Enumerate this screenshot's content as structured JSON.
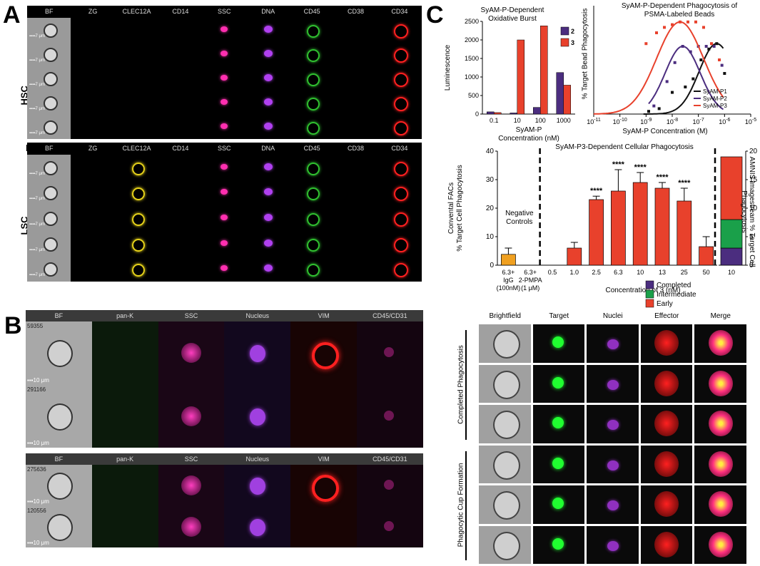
{
  "panels": {
    "A": "A",
    "B": "B",
    "C": "C",
    "subB": "B"
  },
  "panelA": {
    "columns": [
      "BF",
      "ZG",
      "CLEC12A",
      "CD14",
      "SSC",
      "DNA",
      "CD45",
      "CD38",
      "CD34"
    ],
    "row_labels": [
      "HSC",
      "LSC"
    ],
    "scale_label": "7 μm"
  },
  "panelB": {
    "columns": [
      "BF",
      "pan-K",
      "SSC",
      "Nucleus",
      "VIM",
      "CD45/CD31"
    ],
    "ids": [
      "59355",
      "291166",
      "275636",
      "120556"
    ],
    "scale_label": "10 μm"
  },
  "panelC_flow": {
    "columns": [
      "Brightfield",
      "Target",
      "Nuclei",
      "Effector",
      "Merge"
    ],
    "groups": [
      "Completed Phagocytosis",
      "Phagocytic Cup Formation"
    ]
  },
  "chart_data": [
    {
      "type": "bar",
      "title": "SyAM-P-Dependent Oxidative Burst",
      "xlabel": "SyAM-P Concentration (nM)",
      "ylabel": "Luminescence",
      "categories": [
        "0.1",
        "10",
        "100",
        "1000"
      ],
      "series": [
        {
          "name": "2",
          "color": "#4b2d7f",
          "values": [
            60,
            30,
            180,
            1120
          ]
        },
        {
          "name": "3",
          "color": "#e8412c",
          "values": [
            40,
            2000,
            2380,
            780
          ]
        }
      ],
      "ylim": [
        0,
        2500
      ],
      "yticks": [
        0,
        500,
        1000,
        1500,
        2000,
        2500
      ]
    },
    {
      "type": "line",
      "title": "SyAM-P-Dependent Phagocytosis of PSMA-Labeled Beads",
      "xlabel": "SyAM-P Concentration (M)",
      "ylabel": "% Target Bead Phagocytosis",
      "x_scale": "log",
      "xlim": [
        -11,
        -5
      ],
      "ylim": [
        0,
        80
      ],
      "xtick_exponents": [
        -11,
        -10,
        -9,
        -8,
        -7,
        -6,
        -5
      ],
      "yticks": [
        0,
        20,
        40,
        60,
        80
      ],
      "legend": [
        "SyAM-P1",
        "SyAM-P2",
        "SyAM-P3"
      ],
      "series": [
        {
          "name": "SyAM-P1",
          "color": "#111111",
          "points": [
            [
              -8.9,
              2
            ],
            [
              -8.5,
              4
            ],
            [
              -8.0,
              16
            ],
            [
              -7.5,
              20
            ],
            [
              -7.2,
              26
            ],
            [
              -6.9,
              40
            ],
            [
              -6.6,
              48
            ],
            [
              -6.3,
              52
            ],
            [
              -6.0,
              30
            ]
          ]
        },
        {
          "name": "SyAM-P2",
          "color": "#4b2d7f",
          "points": [
            [
              -8.7,
              6
            ],
            [
              -8.2,
              24
            ],
            [
              -7.9,
              38
            ],
            [
              -7.6,
              50
            ],
            [
              -7.3,
              46
            ],
            [
              -7.0,
              50
            ],
            [
              -6.7,
              50
            ],
            [
              -6.4,
              50
            ],
            [
              -6.1,
              36
            ]
          ]
        },
        {
          "name": "SyAM-P3",
          "color": "#e8412c",
          "points": [
            [
              -9.0,
              52
            ],
            [
              -8.6,
              60
            ],
            [
              -8.3,
              64
            ],
            [
              -8.0,
              66
            ],
            [
              -7.7,
              68
            ],
            [
              -7.4,
              68
            ],
            [
              -7.1,
              68
            ],
            [
              -6.8,
              64
            ],
            [
              -6.5,
              52
            ],
            [
              -6.2,
              40
            ]
          ]
        }
      ]
    },
    {
      "type": "bar",
      "title": "SyAM-P3-Dependent Cellular Phagocytosis",
      "ylabel_left": "Convental FACs % Target Cell Phagocytosis",
      "ylabel_right": "AMNIS Imagestream % Target Cell Phagocytosis",
      "xlabel": "Concentration of 3 (nM)",
      "annotation": "Negative Controls",
      "significance": "****",
      "ylim": [
        0,
        40
      ],
      "yticks": [
        0,
        10,
        20,
        30,
        40
      ],
      "yticks_right": [
        0,
        5,
        10,
        15,
        20
      ],
      "categories": [
        "6.3+ IgG (100nM)",
        "6.3+ 2-PMPA (1 μM)",
        "0.5",
        "1.0",
        "2.5",
        "6.3",
        "10",
        "13",
        "25",
        "50"
      ],
      "values": [
        3.8,
        0,
        0,
        6,
        23,
        26,
        29,
        27,
        22.5,
        6.5
      ],
      "errors": [
        2.2,
        0,
        0,
        2,
        1.2,
        7.5,
        3.5,
        2,
        4.5,
        3.5
      ],
      "stacked_bar": {
        "category": "10",
        "segments": [
          {
            "name": "Completed",
            "color": "#4b2d7f",
            "value": 3
          },
          {
            "name": "Intermediate",
            "color": "#1aa04a",
            "value": 5
          },
          {
            "name": "Early",
            "color": "#e8412c",
            "value": 11
          }
        ]
      }
    }
  ]
}
